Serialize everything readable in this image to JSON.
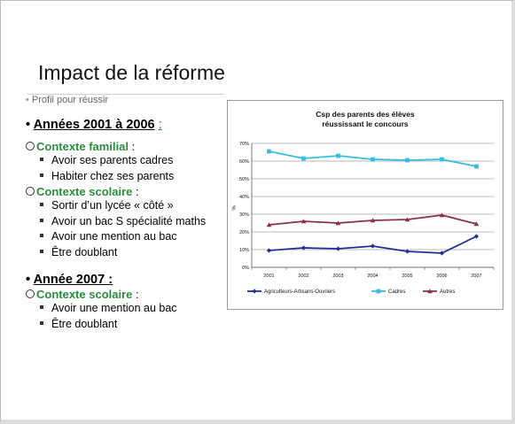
{
  "slide": {
    "title": "Impact de la réforme",
    "profile_bullet": "Profil pour réussir",
    "section1": {
      "heading": "Années 2001 à 2006",
      "colon": ":"
    },
    "ctx_familial": {
      "label": "Contexte familial",
      "colon": ":"
    },
    "familial_items": [
      "Avoir ses parents cadres",
      "Habiter chez ses parents"
    ],
    "ctx_scolaire": {
      "label": "Contexte scolaire",
      "colon": ":"
    },
    "scolaire_items": [
      "Sortir d’un lycée « côté »",
      "Avoir un bac S spécialité maths",
      "Avoir une mention au bac",
      "Être doublant"
    ],
    "section2": {
      "heading": "Année 2007 :"
    },
    "ctx_scolaire2": {
      "label": "Contexte scolaire",
      "colon": ":"
    },
    "scolaire2_items": [
      "Avoir une mention au bac",
      "Être doublant"
    ]
  },
  "chart_data": {
    "type": "line",
    "title": "Csp des parents des élèves",
    "subtitle": "réussissant le concours",
    "ylabel": "%",
    "categories": [
      "2001",
      "2002",
      "2003",
      "2004",
      "2005",
      "2006",
      "2007"
    ],
    "yticks": [
      "0%",
      "10%",
      "20%",
      "30%",
      "40%",
      "50%",
      "60%",
      "70%"
    ],
    "ylim": [
      0,
      70
    ],
    "grid": true,
    "legend_position": "bottom",
    "series": [
      {
        "name": "Agriculteurs-Artisans-Ouvriers",
        "color": "#1f2f9a",
        "marker": "diamond",
        "values": [
          9.5,
          11,
          10.5,
          12,
          9,
          8,
          17.5
        ]
      },
      {
        "name": "Cadres",
        "color": "#35bde3",
        "marker": "square",
        "values": [
          65.5,
          61.5,
          63,
          61,
          60.5,
          61,
          57
        ]
      },
      {
        "name": "Autres",
        "color": "#8c2e52",
        "marker": "triangle",
        "values": [
          24,
          26,
          25,
          26.5,
          27,
          29.5,
          24.5
        ]
      }
    ]
  }
}
